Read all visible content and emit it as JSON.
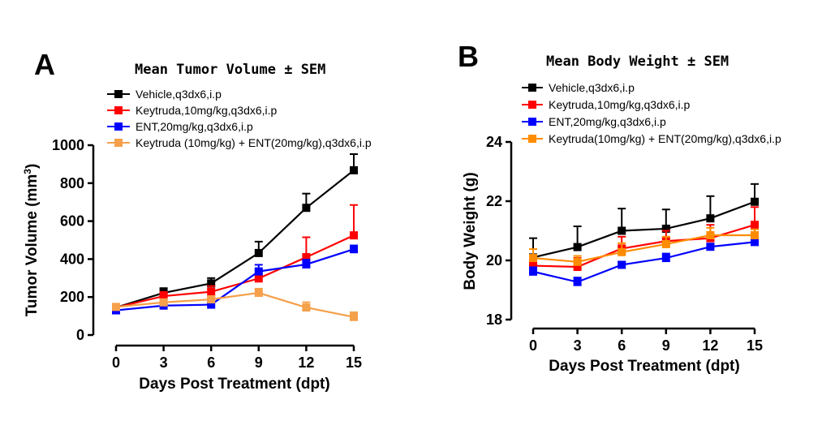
{
  "chart_data": [
    {
      "type": "line",
      "panel": "A",
      "title": "Mean Tumor Volume ± SEM",
      "xlabel": "Days Post Treatment (dpt)",
      "ylabel_main": "Tumor Volume (mm",
      "ylabel_sup": "3",
      "ylabel_close": ")",
      "xlim": [
        0,
        15
      ],
      "ylim": [
        0,
        1000
      ],
      "x": [
        0,
        3,
        6,
        9,
        12,
        15
      ],
      "xticks": [
        "0",
        "3",
        "6",
        "9",
        "12",
        "15"
      ],
      "yticks": [
        0,
        200,
        400,
        600,
        800,
        1000
      ],
      "ytick_labels": [
        "0",
        "200",
        "400",
        "600",
        "800",
        "1000"
      ],
      "legend_position": "top-left",
      "series": [
        {
          "name": "Vehicle,q3dx6,i.p",
          "color": "#000000",
          "values": [
            145,
            222,
            272,
            432,
            670,
            868
          ],
          "err": [
            15,
            25,
            28,
            60,
            75,
            85
          ]
        },
        {
          "name": "Keytruda,10mg/kg,q3dx6,i.p",
          "color": "#ff0000",
          "values": [
            145,
            205,
            228,
            298,
            410,
            525
          ],
          "err": [
            12,
            22,
            30,
            22,
            105,
            160
          ]
        },
        {
          "name": "ENT,20mg/kg,q3dx6,i.p",
          "color": "#0000ff",
          "values": [
            130,
            155,
            160,
            335,
            372,
            452
          ],
          "err": [
            10,
            10,
            12,
            35,
            25,
            20
          ]
        },
        {
          "name": "Keytruda (10mg/kg) + ENT(20mg/kg),q3dx6,i.p",
          "color": "#f5a04a",
          "values": [
            148,
            172,
            188,
            222,
            145,
            95
          ],
          "err": [
            10,
            12,
            15,
            22,
            28,
            25
          ]
        }
      ]
    },
    {
      "type": "line",
      "panel": "B",
      "title": "Mean Body Weight ± SEM",
      "xlabel": "Days Post Treatment (dpt)",
      "ylabel": "Body Weight (g)",
      "xlim": [
        0,
        15
      ],
      "ylim": [
        18,
        24
      ],
      "x": [
        0,
        3,
        6,
        9,
        12,
        15
      ],
      "xticks": [
        "0",
        "3",
        "6",
        "9",
        "12",
        "15"
      ],
      "yticks": [
        18,
        20,
        22,
        24
      ],
      "ytick_labels": [
        "18",
        "20",
        "22",
        "24"
      ],
      "legend_position": "top-left",
      "series": [
        {
          "name": "Vehicle,q3dx6,i.p",
          "color": "#000000",
          "values": [
            20.1,
            20.45,
            21.0,
            21.07,
            21.42,
            21.98
          ],
          "err": [
            0.65,
            0.7,
            0.75,
            0.65,
            0.75,
            0.6
          ]
        },
        {
          "name": "Keytruda,10mg/kg,q3dx6,i.p",
          "color": "#ff0000",
          "values": [
            19.82,
            19.78,
            20.4,
            20.65,
            20.75,
            21.2
          ],
          "err": [
            0.35,
            0.3,
            0.4,
            0.35,
            0.45,
            0.6
          ]
        },
        {
          "name": "ENT,20mg/kg,q3dx6,i.p",
          "color": "#0000ff",
          "values": [
            19.62,
            19.27,
            19.85,
            20.08,
            20.46,
            20.62
          ],
          "err": [
            0.15,
            0.15,
            0.1,
            0.15,
            0.1,
            0.12
          ]
        },
        {
          "name": "Keytruda(10mg/kg) + ENT(20mg/kg),q3dx6,i.p",
          "color": "#ff8c00",
          "values": [
            20.08,
            19.95,
            20.28,
            20.55,
            20.85,
            20.85
          ],
          "err": [
            0.3,
            0.2,
            0.3,
            0.25,
            0.25,
            0.2
          ]
        }
      ]
    }
  ]
}
